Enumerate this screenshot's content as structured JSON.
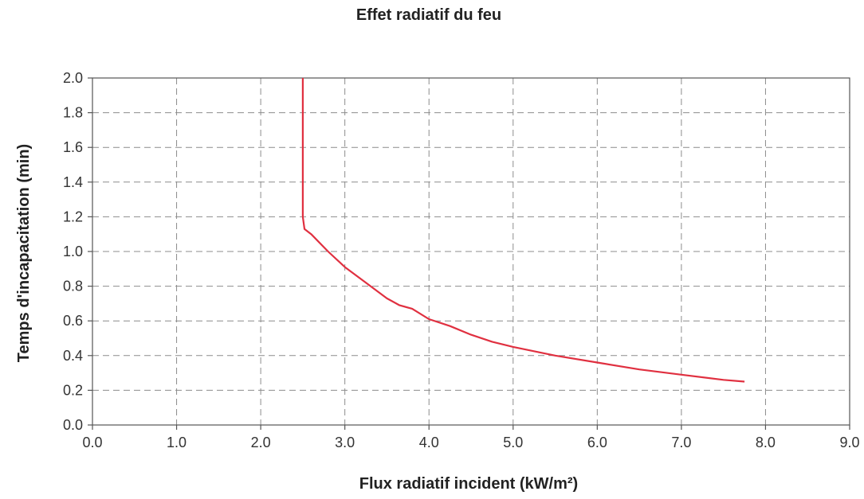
{
  "chart_data": {
    "type": "line",
    "title": "Effet radiatif du feu",
    "xlabel": "Flux radiatif incident (kW/m²)",
    "ylabel": "Temps d'incapacitation (min)",
    "xlim": [
      0,
      9
    ],
    "ylim": [
      0,
      2
    ],
    "xticks": [
      "0.0",
      "1.0",
      "2.0",
      "3.0",
      "4.0",
      "5.0",
      "6.0",
      "7.0",
      "8.0",
      "9.0"
    ],
    "yticks": [
      "0.0",
      "0.2",
      "0.4",
      "0.6",
      "0.8",
      "1.0",
      "1.2",
      "1.4",
      "1.6",
      "1.8",
      "2.0"
    ],
    "grid": true,
    "series": [
      {
        "color": "#e03040",
        "x": [
          2.5,
          2.5,
          2.52,
          2.6,
          2.8,
          3.0,
          3.25,
          3.5,
          3.65,
          3.8,
          4.0,
          4.25,
          4.5,
          4.75,
          5.0,
          5.5,
          6.0,
          6.5,
          7.0,
          7.5,
          7.75
        ],
        "y": [
          2.0,
          1.2,
          1.13,
          1.1,
          1.0,
          0.91,
          0.82,
          0.73,
          0.69,
          0.67,
          0.61,
          0.57,
          0.52,
          0.48,
          0.45,
          0.4,
          0.36,
          0.32,
          0.29,
          0.26,
          0.25
        ]
      }
    ]
  }
}
